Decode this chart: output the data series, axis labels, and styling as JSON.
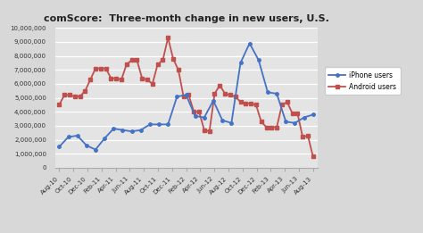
{
  "title": "comScore:  Three-month change in new users, U.S.",
  "labels": [
    "Aug-10",
    "Oct-10",
    "Dec-10",
    "Feb-11",
    "Apr-11",
    "Jun-11",
    "Aug-11",
    "Oct-11",
    "Dec-11",
    "Feb-12",
    "Apr-12",
    "Jun-12",
    "Aug-12",
    "Oct-12",
    "Dec-12",
    "Feb-13",
    "Apr-13",
    "Jun-13",
    "Aug-13"
  ],
  "iphone": [
    1500000,
    2200000,
    2300000,
    1600000,
    1300000,
    2100000,
    2800000,
    2700000,
    2600000,
    2700000,
    3100000,
    3100000,
    3100000,
    5100000,
    5200000,
    3700000,
    3600000,
    4800000,
    3400000,
    3200000,
    7500000,
    8900000,
    7700000,
    5400000,
    5300000,
    3300000,
    3200000,
    3600000,
    3800000
  ],
  "android": [
    4500000,
    5200000,
    5200000,
    5100000,
    5100000,
    5500000,
    6300000,
    7100000,
    7100000,
    7100000,
    6400000,
    6400000,
    6300000,
    7400000,
    7700000,
    7700000,
    6400000,
    6300000,
    6000000,
    7400000,
    7700000,
    9300000,
    7800000,
    7000000,
    5100000,
    5200000,
    4000000,
    4000000,
    2700000,
    2600000,
    5300000,
    5900000,
    5300000,
    5200000,
    5100000,
    4700000,
    4600000,
    4600000,
    4500000,
    3300000,
    2900000,
    2900000,
    2900000,
    4500000,
    4700000,
    3900000,
    3900000,
    2200000,
    2300000,
    800000
  ],
  "iphone_color": "#4472c4",
  "android_color": "#c0504d",
  "bg_color": "#e8e8e8",
  "plot_bg": "#e8e8e8",
  "ylim": [
    0,
    10000000
  ],
  "yticks": [
    0,
    1000000,
    2000000,
    3000000,
    4000000,
    5000000,
    6000000,
    7000000,
    8000000,
    9000000,
    10000000
  ]
}
